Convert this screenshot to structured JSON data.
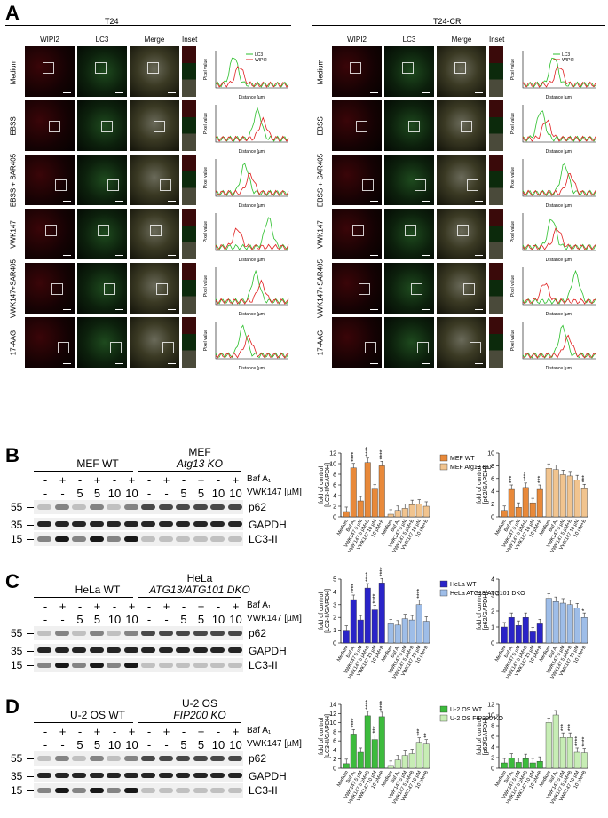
{
  "panelA": {
    "letter": "A",
    "groups": [
      "T24",
      "T24-CR"
    ],
    "columns": [
      "WIPI2",
      "LC3",
      "Merge",
      "Inset"
    ],
    "rows": [
      "Medium",
      "EBSS",
      "EBSS + SAR405",
      "VWK147",
      "VWK147+SAR405",
      "17-AAG"
    ],
    "profile_legend": [
      "LC3",
      "WIPI2"
    ],
    "profile_xlabel": "Distance [µm]",
    "profile_ylabel": "Pixel value",
    "colors": {
      "lc3": "#2bbf2b",
      "wipi2": "#e02020"
    }
  },
  "panelB": {
    "letter": "B",
    "left_label": "MEF WT",
    "right_label_line1": "MEF",
    "right_label_line2": "Atg13 KO",
    "baf_label": "Baf A₁",
    "vwk_label": "VWK147 [µM]",
    "legend": [
      "MEF WT",
      "MEF Atg13 KO"
    ],
    "colors": {
      "wt": "#e8893a",
      "ko": "#f1c48f"
    }
  },
  "panelC": {
    "letter": "C",
    "left_label": "HeLa WT",
    "right_label_line1": "HeLa",
    "right_label_line2": "ATG13/ATG101 DKO",
    "baf_label": "Baf A₁",
    "vwk_label": "VWK147 [µM]",
    "legend": [
      "HeLa WT",
      "HeLa ATG13/ATG101 DKO"
    ],
    "colors": {
      "wt": "#2a24c8",
      "ko": "#9ebde8"
    }
  },
  "panelD": {
    "letter": "D",
    "left_label": "U-2 OS WT",
    "right_label_line1": "U-2 OS",
    "right_label_line2": "FIP200 KO",
    "baf_label": "Baf A₁",
    "vwk_label": "VWK147 [µM]",
    "legend": [
      "U-2 OS WT",
      "U-2 OS FIP200 KO"
    ],
    "colors": {
      "wt": "#3dbb3d",
      "ko": "#c7edb5"
    }
  },
  "blot": {
    "baf_row": [
      "-",
      "+",
      "-",
      "+",
      "-",
      "+"
    ],
    "vwk_row": [
      "-",
      "-",
      "5",
      "5",
      "10",
      "10"
    ],
    "bands": [
      "p62",
      "GAPDH",
      "LC3-II"
    ],
    "mw": [
      "55",
      "35",
      "15"
    ]
  },
  "bar_categories": [
    "Medium",
    "Baf A₁",
    "VWK147 5 µM",
    "VWK147 5 µM+B",
    "VWK147 10 µM",
    "10 µM+B"
  ],
  "chart_data": [
    {
      "type": "bar",
      "ylabel": "fold of control [LC3-II/GAPDH]",
      "ylim": [
        0,
        12
      ],
      "yticks": [
        0,
        2,
        4,
        6,
        8,
        10,
        12
      ],
      "series": [
        {
          "name": "MEF WT",
          "values": [
            1.0,
            9.2,
            3.0,
            10.2,
            5.2,
            9.6
          ]
        },
        {
          "name": "MEF Atg13 KO",
          "values": [
            0.5,
            1.2,
            1.6,
            2.3,
            2.4,
            2.0
          ]
        }
      ],
      "stars": [
        [
          "",
          "****",
          "",
          "****",
          "",
          "****"
        ],
        [
          "",
          "",
          "",
          "",
          "",
          ""
        ]
      ]
    },
    {
      "type": "bar",
      "ylabel": "fold of control [p62/GAPDH]",
      "ylim": [
        0,
        10
      ],
      "yticks": [
        0,
        2,
        4,
        6,
        8,
        10
      ],
      "series": [
        {
          "name": "MEF WT",
          "values": [
            1.0,
            4.3,
            1.5,
            4.6,
            2.2,
            4.3
          ]
        },
        {
          "name": "MEF Atg13 KO",
          "values": [
            7.6,
            7.4,
            6.6,
            6.4,
            5.8,
            4.4
          ]
        }
      ],
      "stars": [
        [
          "",
          "***",
          "",
          "****",
          "",
          "***"
        ],
        [
          "",
          "",
          "",
          "",
          "",
          "***"
        ]
      ]
    },
    {
      "type": "bar",
      "ylabel": "fold of control [LC3-II/GAPDH]",
      "ylim": [
        0,
        5
      ],
      "yticks": [
        0,
        1,
        2,
        3,
        4,
        5
      ],
      "series": [
        {
          "name": "HeLa WT",
          "values": [
            1.0,
            3.4,
            1.8,
            4.3,
            2.6,
            4.7
          ]
        },
        {
          "name": "HeLa ATG13/ATG101 DKO",
          "values": [
            1.5,
            1.4,
            1.9,
            1.8,
            3.0,
            1.7
          ]
        }
      ],
      "stars": [
        [
          "",
          "****",
          "",
          "****",
          "****",
          "****"
        ],
        [
          "",
          "",
          "",
          "",
          "****",
          ""
        ]
      ]
    },
    {
      "type": "bar",
      "ylabel": "fold of control [p62/GAPDH]",
      "ylim": [
        0,
        4
      ],
      "yticks": [
        0,
        1,
        2,
        3,
        4
      ],
      "series": [
        {
          "name": "HeLa WT",
          "values": [
            1.0,
            1.6,
            1.1,
            1.6,
            0.7,
            1.2
          ]
        },
        {
          "name": "HeLa ATG13/ATG101 DKO",
          "values": [
            2.8,
            2.6,
            2.5,
            2.4,
            2.2,
            1.6
          ]
        }
      ],
      "stars": [
        [
          "",
          "",
          "",
          "",
          "",
          ""
        ],
        [
          "",
          "",
          "",
          "",
          "",
          "*"
        ]
      ]
    },
    {
      "type": "bar",
      "ylabel": "fold of control [LC3-II/GAPDH]",
      "ylim": [
        0,
        14
      ],
      "yticks": [
        0,
        2,
        4,
        6,
        8,
        10,
        12,
        14
      ],
      "series": [
        {
          "name": "U-2 OS WT",
          "values": [
            1.0,
            7.5,
            3.5,
            11.5,
            6.3,
            11.3
          ]
        },
        {
          "name": "U-2 OS FIP200 KO",
          "values": [
            0.6,
            1.8,
            2.8,
            3.2,
            5.7,
            5.3
          ]
        }
      ],
      "stars": [
        [
          "",
          "****",
          "",
          "****",
          "***",
          "****"
        ],
        [
          "",
          "",
          "",
          "",
          "***",
          "**"
        ]
      ]
    },
    {
      "type": "bar",
      "ylabel": "fold of control [p62/GAPDH]",
      "ylim": [
        0,
        12
      ],
      "yticks": [
        0,
        2,
        4,
        6,
        8,
        10,
        12
      ],
      "series": [
        {
          "name": "U-2 OS WT",
          "values": [
            1.0,
            1.9,
            1.1,
            1.8,
            1.0,
            1.3
          ]
        },
        {
          "name": "U-2 OS FIP200 KO",
          "values": [
            8.6,
            10.0,
            5.8,
            5.8,
            3.0,
            2.9
          ]
        }
      ],
      "stars": [
        [
          "",
          "",
          "",
          "",
          "",
          ""
        ],
        [
          "",
          "",
          "***",
          "***",
          "****",
          "****"
        ]
      ]
    }
  ]
}
